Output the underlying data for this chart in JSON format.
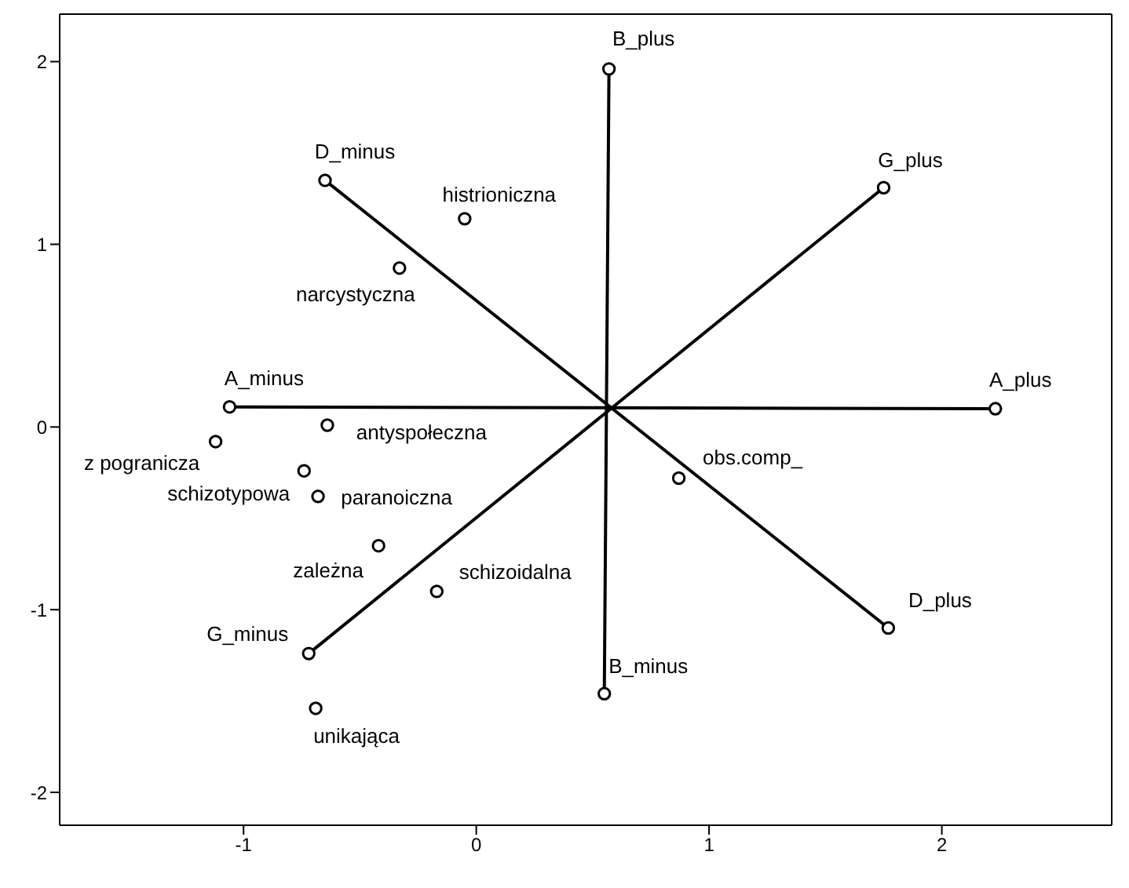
{
  "chart_data": {
    "type": "scatter",
    "xlim": [
      -1.79,
      2.73
    ],
    "ylim": [
      -2.18,
      2.26
    ],
    "xticks": [
      -1,
      0,
      1,
      2
    ],
    "yticks": [
      -2,
      -1,
      0,
      1,
      2
    ],
    "grid": false,
    "legend": false,
    "marker": "circle",
    "series": [
      {
        "type": "line",
        "color": "#000000",
        "x": [
          -1.06,
          2.23
        ],
        "values": [
          0.11,
          0.1
        ]
      },
      {
        "type": "line",
        "color": "#000000",
        "x": [
          0.55,
          0.57
        ],
        "values": [
          -1.46,
          1.96
        ]
      },
      {
        "type": "line",
        "color": "#000000",
        "x": [
          -0.72,
          1.75
        ],
        "values": [
          -1.24,
          1.31
        ]
      },
      {
        "type": "line",
        "color": "#000000",
        "x": [
          -0.65,
          1.77
        ],
        "values": [
          1.35,
          -1.1
        ]
      },
      {
        "color": "#000000",
        "x": [
          -0.05,
          -0.33,
          -0.64,
          -1.12,
          -0.74,
          -0.68,
          -0.42,
          -0.17,
          -0.69,
          0.87
        ],
        "values": [
          1.14,
          0.87,
          0.01,
          -0.08,
          -0.24,
          -0.38,
          -0.65,
          -0.9,
          -1.54,
          -0.28
        ]
      }
    ],
    "annotations": [
      {
        "text": "A_minus",
        "x": -1.06,
        "y": 0.11
      },
      {
        "text": "A_plus",
        "x": 2.23,
        "y": 0.1
      },
      {
        "text": "B_minus",
        "x": 0.55,
        "y": -1.46
      },
      {
        "text": "B_plus",
        "x": 0.57,
        "y": 1.96
      },
      {
        "text": "G_minus",
        "x": -0.72,
        "y": -1.24
      },
      {
        "text": "G_plus",
        "x": 1.75,
        "y": 1.31
      },
      {
        "text": "D_minus",
        "x": -0.65,
        "y": 1.35
      },
      {
        "text": "D_plus",
        "x": 1.77,
        "y": -1.1
      },
      {
        "text": "histrioniczna",
        "x": -0.05,
        "y": 1.14
      },
      {
        "text": "narcystyczna",
        "x": -0.33,
        "y": 0.87
      },
      {
        "text": "antyspołeczna",
        "x": -0.64,
        "y": 0.01
      },
      {
        "text": "z pogranicza",
        "x": -1.12,
        "y": -0.08
      },
      {
        "text": "schizotypowa",
        "x": -0.74,
        "y": -0.24
      },
      {
        "text": "paranoiczna",
        "x": -0.68,
        "y": -0.38
      },
      {
        "text": "zależna",
        "x": -0.42,
        "y": -0.65
      },
      {
        "text": "schizoidalna",
        "x": -0.17,
        "y": -0.9
      },
      {
        "text": "unikająca",
        "x": -0.69,
        "y": -1.54
      },
      {
        "text": "obs.comp_",
        "x": 0.87,
        "y": -0.28
      }
    ]
  }
}
